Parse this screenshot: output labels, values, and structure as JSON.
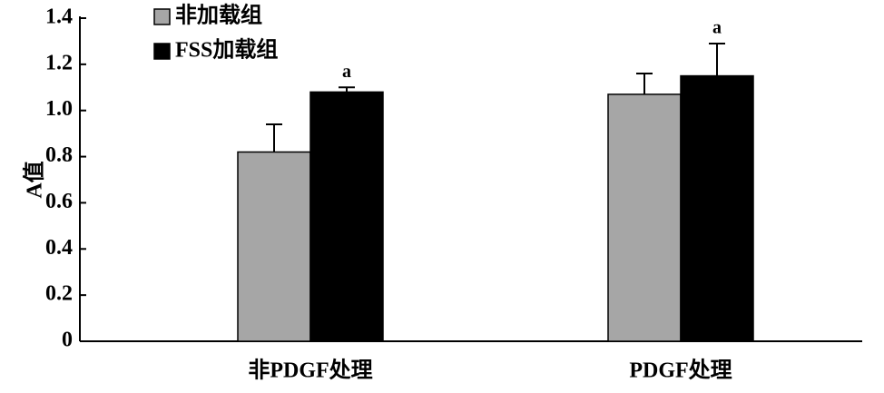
{
  "chart_data": {
    "type": "bar",
    "y_label": "A值",
    "categories": [
      "非PDGF处理",
      "PDGF处理"
    ],
    "series": [
      {
        "name": "非加载组",
        "color": "#a6a6a6",
        "values": [
          0.82,
          1.07
        ],
        "errors": [
          0.12,
          0.09
        ]
      },
      {
        "name": "FSS加载组",
        "color": "#000000",
        "values": [
          1.08,
          1.15
        ],
        "errors": [
          0.02,
          0.14
        ],
        "annotations": [
          "a",
          "a"
        ]
      }
    ],
    "ylim": [
      0,
      1.4
    ],
    "yticks": [
      0,
      0.2,
      0.4,
      0.6,
      0.8,
      {
        "value": 1,
        "label": "1.0"
      },
      1.2,
      1.4
    ],
    "legend": "upper left"
  }
}
